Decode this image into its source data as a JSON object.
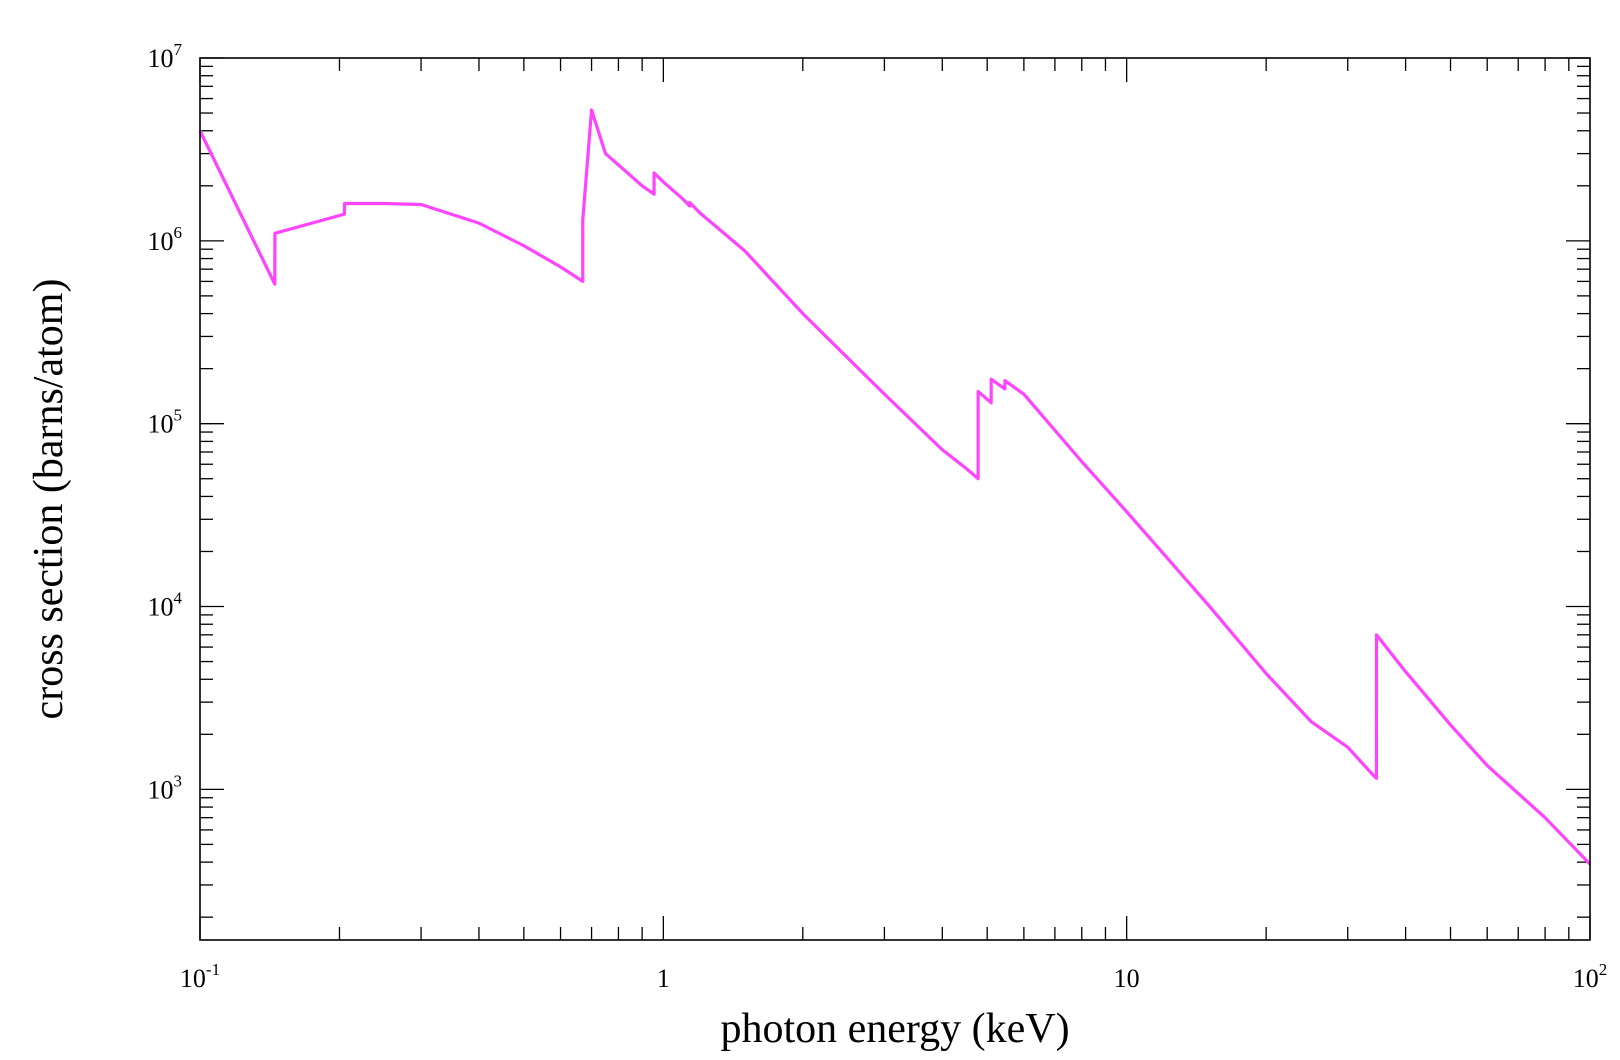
{
  "chart_data": {
    "type": "line",
    "title": "",
    "xlabel": "photon energy (keV)",
    "ylabel": "cross section (barns/atom)",
    "xscale": "log",
    "yscale": "log",
    "xlim": [
      0.1,
      100
    ],
    "ylim": [
      150,
      10000000
    ],
    "grid": false,
    "x_ticks": [
      {
        "value": 0.1,
        "base": "10",
        "exp": "-1"
      },
      {
        "value": 1,
        "base": "1",
        "exp": ""
      },
      {
        "value": 10,
        "base": "10",
        "exp": ""
      },
      {
        "value": 100,
        "base": "10",
        "exp": "2"
      }
    ],
    "y_ticks": [
      {
        "value": 1000,
        "base": "10",
        "exp": "3"
      },
      {
        "value": 10000,
        "base": "10",
        "exp": "4"
      },
      {
        "value": 100000,
        "base": "10",
        "exp": "5"
      },
      {
        "value": 1000000,
        "base": "10",
        "exp": "6"
      },
      {
        "value": 10000000,
        "base": "10",
        "exp": "7"
      }
    ],
    "series": [
      {
        "color": "#ff44ff",
        "x": [
          0.1,
          0.145,
          0.1451,
          0.205,
          0.2051,
          0.25,
          0.3,
          0.4,
          0.5,
          0.6,
          0.67,
          0.6701,
          0.7,
          0.75,
          0.8,
          0.9,
          0.955,
          0.9551,
          1.0,
          1.1,
          1.14,
          1.1401,
          1.2,
          1.5,
          2.0,
          3.0,
          4.0,
          4.5,
          4.78,
          4.7801,
          5.1,
          5.1001,
          5.46,
          5.4601,
          6.0,
          8.0,
          10.0,
          15.0,
          20.0,
          25.0,
          30.0,
          34.0,
          34.6,
          34.61,
          40.0,
          50.0,
          60.0,
          80.0,
          100.0
        ],
        "y": [
          4000000,
          580000,
          1100000,
          1400000,
          1600000,
          1600000,
          1580000,
          1250000,
          940000,
          720000,
          600000,
          1300000,
          5200000,
          3000000,
          2600000,
          2000000,
          1800000,
          2350000,
          2100000,
          1700000,
          1550000,
          1620000,
          1420000,
          880000,
          400000,
          145000,
          72000,
          57000,
          50000,
          150000,
          130000,
          175000,
          155000,
          172000,
          145000,
          62000,
          33000,
          10200,
          4300,
          2350,
          1700,
          1200,
          1150,
          7000,
          4400,
          2250,
          1350,
          700,
          390
        ]
      }
    ]
  }
}
